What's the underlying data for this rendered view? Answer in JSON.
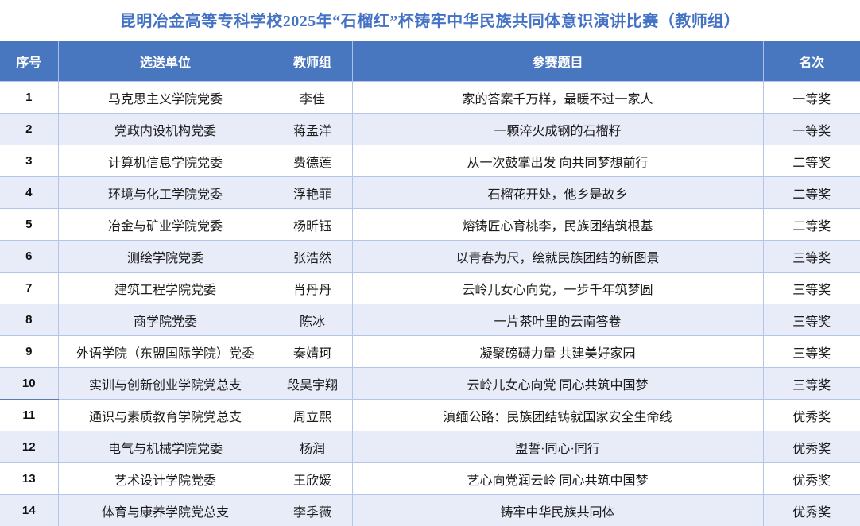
{
  "title": "昆明冶金高等专科学校2025年“石榴红”杯铸牢中华民族共同体意识演讲比赛（教师组）",
  "colors": {
    "header_bg": "#4876BF",
    "header_text": "#FFFFFF",
    "title_text": "#4472C4",
    "alt_row_bg": "#E8ECF8",
    "border": "#B4C6E7"
  },
  "table": {
    "columns": [
      "序号",
      "选送单位",
      "教师组",
      "参赛题目",
      "名次"
    ],
    "rows": [
      {
        "no": "1",
        "unit": "马克思主义学院党委",
        "teacher": "李佳",
        "topic": "家的答案千万样，最暖不过一家人",
        "rank": "一等奖"
      },
      {
        "no": "2",
        "unit": "党政内设机构党委",
        "teacher": "蒋孟洋",
        "topic": "一颗淬火成钢的石榴籽",
        "rank": "一等奖"
      },
      {
        "no": "3",
        "unit": "计算机信息学院党委",
        "teacher": "费德莲",
        "topic": "从一次鼓掌出发 向共同梦想前行",
        "rank": "二等奖"
      },
      {
        "no": "4",
        "unit": "环境与化工学院党委",
        "teacher": "浮艳菲",
        "topic": "石榴花开处，他乡是故乡",
        "rank": "二等奖"
      },
      {
        "no": "5",
        "unit": "冶金与矿业学院党委",
        "teacher": "杨昕钰",
        "topic": "熔铸匠心育桃李，民族团结筑根基",
        "rank": "二等奖"
      },
      {
        "no": "6",
        "unit": "测绘学院党委",
        "teacher": "张浩然",
        "topic": "以青春为尺，绘就民族团结的新图景",
        "rank": "三等奖"
      },
      {
        "no": "7",
        "unit": "建筑工程学院党委",
        "teacher": "肖丹丹",
        "topic": "云岭儿女心向党，一步千年筑梦圆",
        "rank": "三等奖"
      },
      {
        "no": "8",
        "unit": "商学院党委",
        "teacher": "陈冰",
        "topic": "一片茶叶里的云南答卷",
        "rank": "三等奖"
      },
      {
        "no": "9",
        "unit": "外语学院（东盟国际学院）党委",
        "teacher": "秦婧珂",
        "topic": "凝聚磅礴力量 共建美好家园",
        "rank": "三等奖"
      },
      {
        "no": "10",
        "unit": "实训与创新创业学院党总支",
        "teacher": "段昊宇翔",
        "topic": "云岭儿女心向党 同心共筑中国梦",
        "rank": "三等奖"
      },
      {
        "no": "11",
        "unit": "通识与素质教育学院党总支",
        "teacher": "周立熙",
        "topic": "滇缅公路：民族团结铸就国家安全生命线",
        "rank": "优秀奖"
      },
      {
        "no": "12",
        "unit": "电气与机械学院党委",
        "teacher": "杨润",
        "topic": "盟誓·同心·同行",
        "rank": "优秀奖"
      },
      {
        "no": "13",
        "unit": "艺术设计学院党委",
        "teacher": "王欣媛",
        "topic": "艺心向党润云岭 同心共筑中国梦",
        "rank": "优秀奖"
      },
      {
        "no": "14",
        "unit": "体育与康养学院党总支",
        "teacher": "李季薇",
        "topic": "铸牢中华民族共同体",
        "rank": "优秀奖"
      }
    ]
  }
}
